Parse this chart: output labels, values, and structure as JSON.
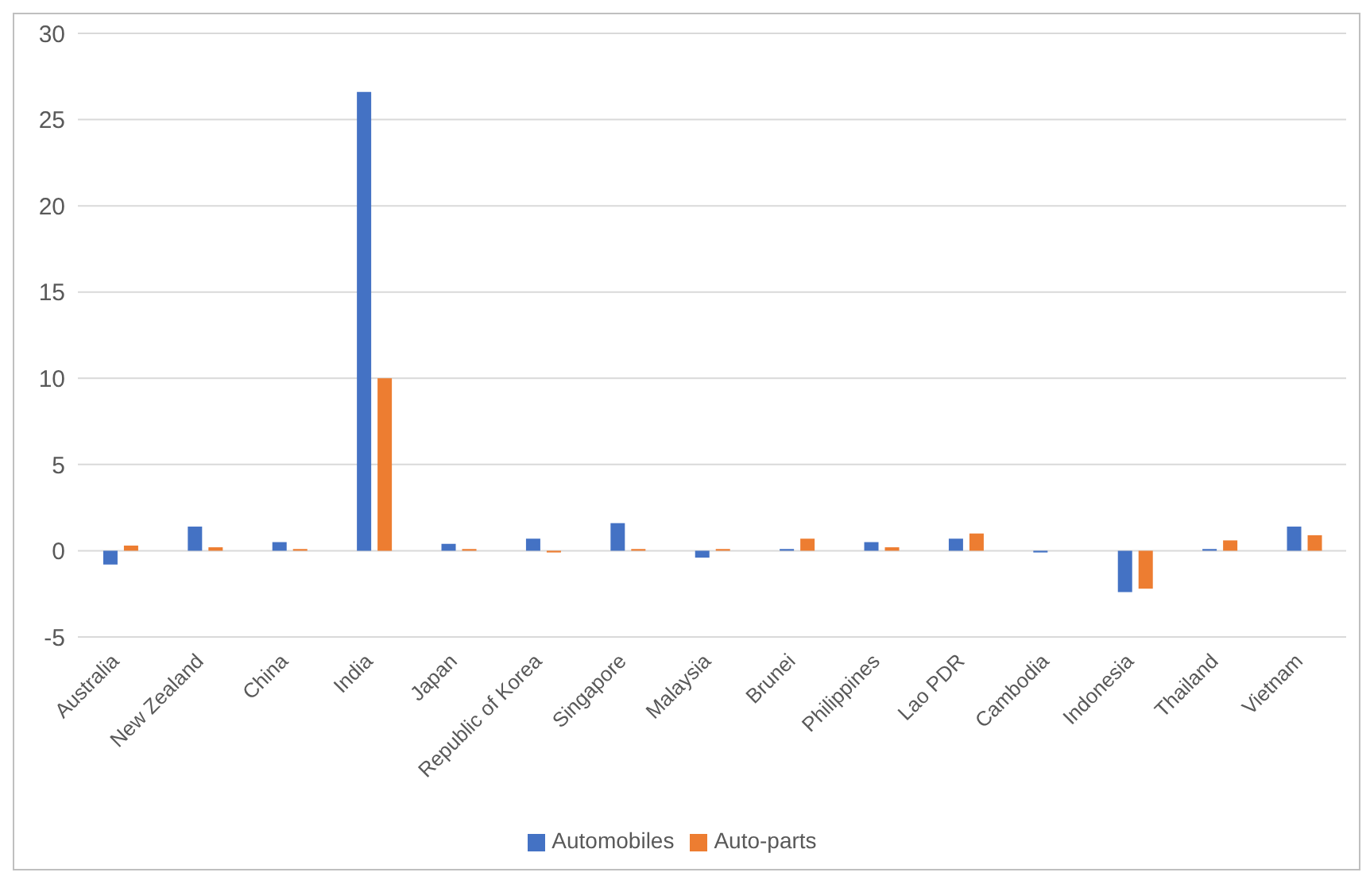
{
  "chart_data": {
    "type": "bar",
    "categories": [
      "Australia",
      "New Zealand",
      "China",
      "India",
      "Japan",
      "Republic of Korea",
      "Singapore",
      "Malaysia",
      "Brunei",
      "Philippines",
      "Lao PDR",
      "Cambodia",
      "Indonesia",
      "Thailand",
      "Vietnam"
    ],
    "series": [
      {
        "name": "Automobiles",
        "color": "#4472c4",
        "values": [
          -0.8,
          1.4,
          0.5,
          26.6,
          0.4,
          0.7,
          1.6,
          -0.4,
          0.1,
          0.5,
          0.7,
          -0.1,
          -2.4,
          0.1,
          1.4
        ]
      },
      {
        "name": "Auto-parts",
        "color": "#ed7d31",
        "values": [
          0.3,
          0.2,
          0.1,
          10,
          0.1,
          -0.1,
          0.1,
          0.1,
          0.7,
          0.2,
          1,
          0,
          -2.2,
          0.6,
          0.9
        ]
      }
    ],
    "ylim": [
      -5,
      30
    ],
    "yticks": [
      -5,
      0,
      5,
      10,
      15,
      20,
      25,
      30
    ],
    "grid": "y",
    "legend": "bottom"
  }
}
